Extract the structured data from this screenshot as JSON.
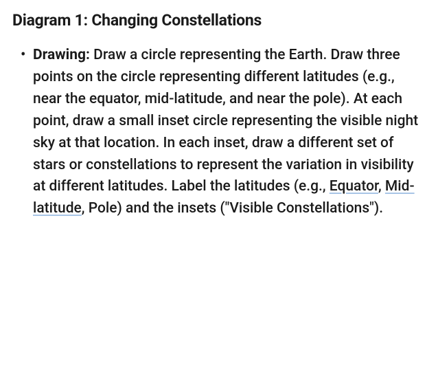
{
  "heading": "Diagram 1: Changing Constellations",
  "bullet": {
    "label": "Drawing:",
    "text_before_links": " Draw a circle representing the Earth.  Draw three points on the circle representing different latitudes (e.g., near the equator, mid-latitude, and near the pole). At each point, draw a small inset circle representing the visible night sky at that location.  In each inset, draw a different set of stars or constellations to represent the variation in visibility at different latitudes.  Label the latitudes (e.g., ",
    "link1": "Equator",
    "sep1": ", ",
    "link2": "Mid-latitude",
    "text_after_links": ", Pole) and the insets (\"Visible Constellations\")."
  },
  "colors": {
    "text": "#1a1a1a",
    "background": "#ffffff",
    "link_underline": "#a8c5e6"
  },
  "typography": {
    "heading_fontsize": 23,
    "heading_weight": 700,
    "body_fontsize": 21,
    "body_weight": 500,
    "line_height": 1.52
  }
}
